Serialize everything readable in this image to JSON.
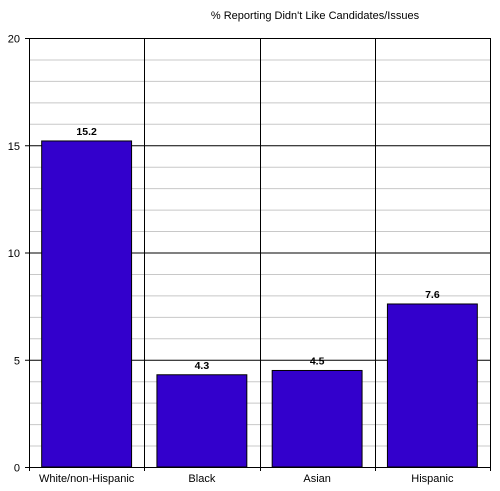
{
  "chart_data": {
    "type": "bar",
    "title": "% Reporting Didn't Like Candidates/Issues",
    "xlabel": "",
    "ylabel": "",
    "categories": [
      "White/non-Hispanic",
      "Black",
      "Asian",
      "Hispanic"
    ],
    "values": [
      15.2,
      4.3,
      4.5,
      7.6
    ],
    "value_labels": [
      "15.2",
      "4.3",
      "4.5",
      "7.6"
    ],
    "ylim": [
      0,
      20
    ],
    "yticks": [
      0,
      5,
      10,
      15,
      20
    ],
    "minor_grid_step": 1,
    "grid": true,
    "legend": "none",
    "bar_color": "#3300cc"
  }
}
